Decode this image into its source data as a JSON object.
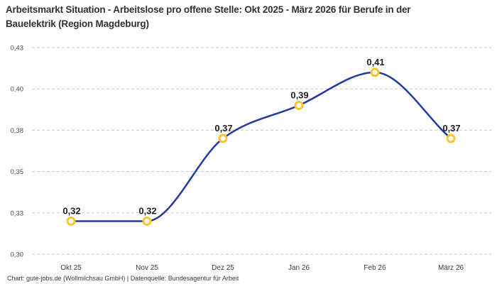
{
  "header": {
    "title": "Arbeitsmarkt Situation - Arbeitslose pro offene Stelle: Okt 2025 - März 2026 für Berufe in der Bauelektrik (Region Magdeburg)"
  },
  "footer": {
    "credit": "Chart: gute-jobs.de (Wollmilchsau GmbH) | Datenquelle: Bundesagentur für Arbeit"
  },
  "chart_data": {
    "type": "line",
    "title": "Arbeitsmarkt Situation - Arbeitslose pro offene Stelle: Okt 2025 - März 2026 für Berufe in der Bauelektrik (Region Magdeburg)",
    "categories": [
      "Okt 25",
      "Nov 25",
      "Dez 25",
      "Jan 26",
      "Feb 26",
      "März 26"
    ],
    "values": [
      0.32,
      0.32,
      0.37,
      0.39,
      0.41,
      0.37
    ],
    "point_labels": [
      "0,32",
      "0,32",
      "0,37",
      "0,39",
      "0,41",
      "0,37"
    ],
    "xlabel": "",
    "ylabel": "",
    "ylim": [
      0.3,
      0.425
    ],
    "yticks": [
      0.3,
      0.325,
      0.35,
      0.375,
      0.4,
      0.425
    ],
    "ytick_labels": [
      "0,30",
      "0,33",
      "0,35",
      "0,38",
      "0,40",
      "0,43"
    ],
    "grid": "horizontal-dashed",
    "legend": "none",
    "colors": {
      "line": "#2239a0",
      "marker_stroke": "#fbc42d",
      "marker_fill": "#ffffff",
      "grid": "#c8c8c8",
      "ytick_text": "#4a4a4a",
      "xtick_text": "#3c3c3c",
      "point_label_text": "#1f1f1f"
    }
  }
}
